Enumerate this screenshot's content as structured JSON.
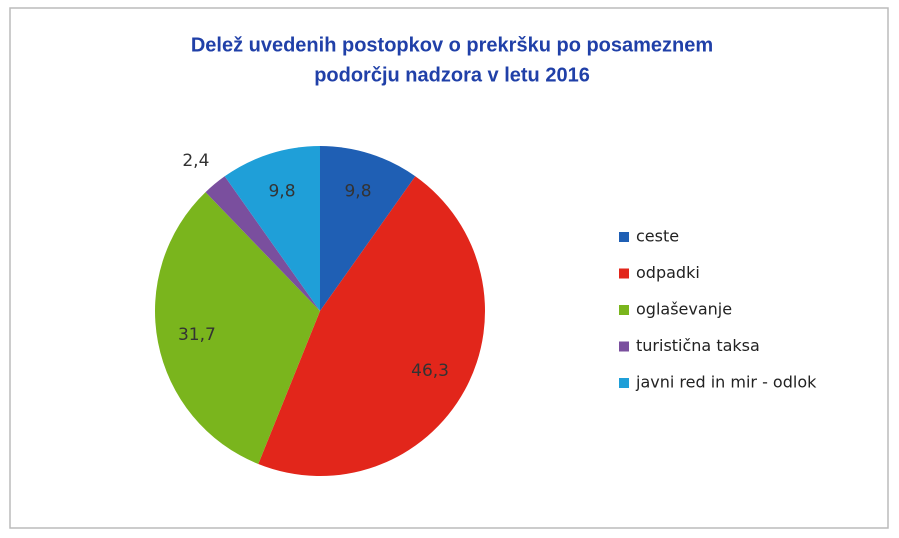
{
  "chart_data": {
    "type": "pie",
    "title": [
      "Delež uvedenih postopkov o prekršku po posameznem",
      "podorčju nadzora v letu 2016"
    ],
    "categories": [
      "ceste",
      "odpadki",
      "oglaševanje",
      "turistična taksa",
      "javni red in mir - odlok"
    ],
    "values": [
      9.8,
      46.3,
      31.7,
      2.4,
      9.8
    ],
    "value_labels": [
      "9,8",
      "46,3",
      "31,7",
      "2,4",
      "9,8"
    ],
    "colors": [
      "#1f5fb4",
      "#e2261b",
      "#7ab51d",
      "#7a4f9e",
      "#1f9fd8"
    ],
    "legend": "right"
  }
}
